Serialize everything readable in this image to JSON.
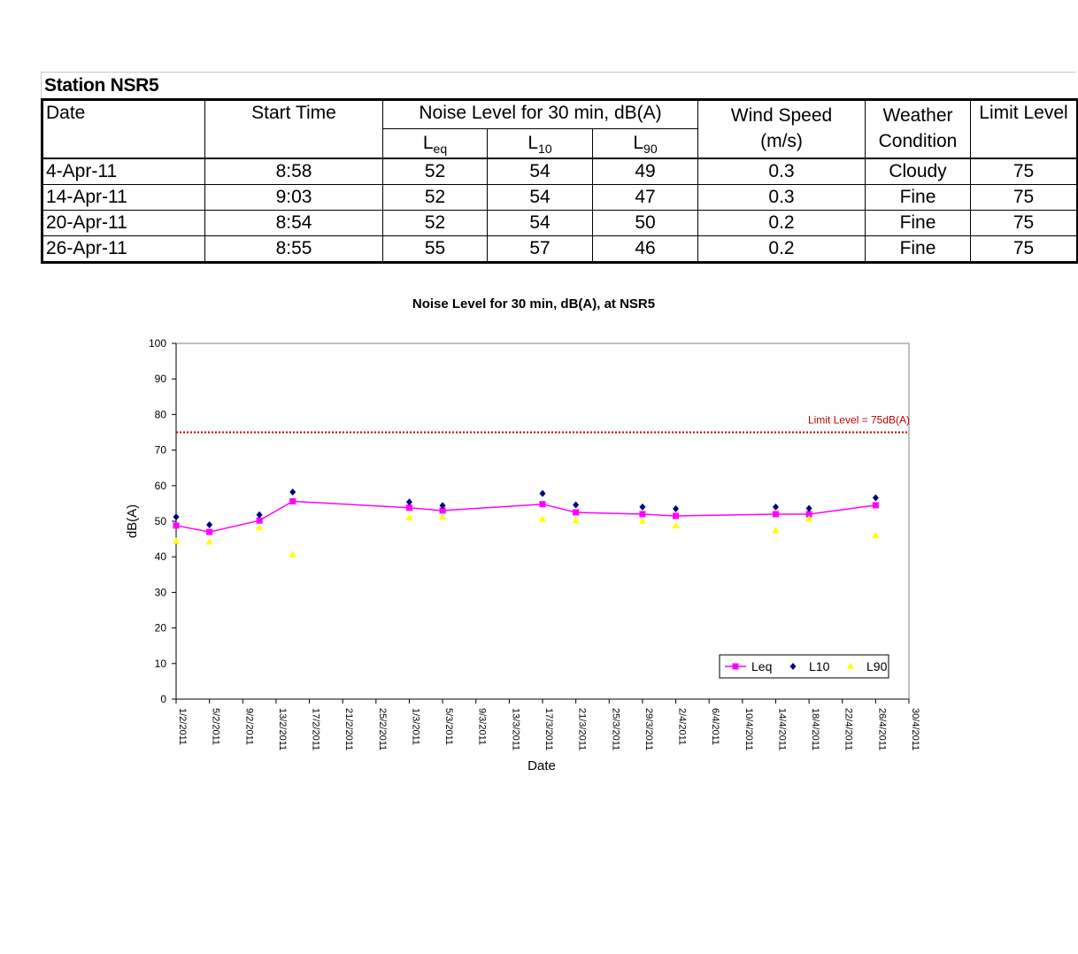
{
  "station_title": "Station NSR5",
  "table": {
    "headers": {
      "date": "Date",
      "start_time": "Start Time",
      "noise_group": "Noise Level for 30 min, dB(A)",
      "leq_main": "L",
      "leq_sub": "eq",
      "l10_main": "L",
      "l10_sub": "10",
      "l90_main": "L",
      "l90_sub": "90",
      "wind_line1": "Wind Speed",
      "wind_line2": "(m/s)",
      "weather_line1": "Weather",
      "weather_line2": "Condition",
      "limit": "Limit Level"
    },
    "rows": [
      {
        "date": "4-Apr-11",
        "start": "8:58",
        "leq": "52",
        "l10": "54",
        "l90": "49",
        "wind": "0.3",
        "weather": "Cloudy",
        "limit": "75"
      },
      {
        "date": "14-Apr-11",
        "start": "9:03",
        "leq": "52",
        "l10": "54",
        "l90": "47",
        "wind": "0.3",
        "weather": "Fine",
        "limit": "75"
      },
      {
        "date": "20-Apr-11",
        "start": "8:54",
        "leq": "52",
        "l10": "54",
        "l90": "50",
        "wind": "0.2",
        "weather": "Fine",
        "limit": "75"
      },
      {
        "date": "26-Apr-11",
        "start": "8:55",
        "leq": "55",
        "l10": "57",
        "l90": "46",
        "wind": "0.2",
        "weather": "Fine",
        "limit": "75"
      }
    ]
  },
  "chart_data": {
    "type": "line",
    "title": "Noise Level for 30 min, dB(A), at NSR5",
    "xlabel": "Date",
    "ylabel": "dB(A)",
    "ylim": [
      0,
      100
    ],
    "yticks": [
      0,
      10,
      20,
      30,
      40,
      50,
      60,
      70,
      80,
      90,
      100
    ],
    "xlim": [
      "1/2/2011",
      "30/4/2011"
    ],
    "xticks": [
      "1/2/2011",
      "5/2/2011",
      "9/2/2011",
      "13/2/2011",
      "17/2/2011",
      "21/2/2011",
      "25/2/2011",
      "1/3/2011",
      "5/3/2011",
      "9/3/2011",
      "13/3/2011",
      "17/3/2011",
      "21/3/2011",
      "25/3/2011",
      "29/3/2011",
      "2/4/2011",
      "6/4/2011",
      "10/4/2011",
      "14/4/2011",
      "18/4/2011",
      "22/4/2011",
      "26/4/2011",
      "30/4/2011"
    ],
    "limit_line": {
      "value": 75,
      "label": "Limit Level = 75dB(A)",
      "color": "#c00000"
    },
    "grid": false,
    "legend_position": "bottom-right",
    "series": [
      {
        "name": "Leq",
        "marker": "square",
        "color": "#ff00ff",
        "line": true,
        "points": [
          [
            "1/2/2011",
            48.8
          ],
          [
            "5/2/2011",
            47.0
          ],
          [
            "11/2/2011",
            50.2
          ],
          [
            "15/2/2011",
            55.6
          ],
          [
            "1/3/2011",
            53.8
          ],
          [
            "5/3/2011",
            53.0
          ],
          [
            "17/3/2011",
            54.8
          ],
          [
            "21/3/2011",
            52.5
          ],
          [
            "29/3/2011",
            52.0
          ],
          [
            "2/4/2011",
            51.5
          ],
          [
            "14/4/2011",
            52.0
          ],
          [
            "18/4/2011",
            52.0
          ],
          [
            "26/4/2011",
            54.5
          ]
        ]
      },
      {
        "name": "L10",
        "marker": "diamond",
        "color": "#000080",
        "line": false,
        "points": [
          [
            "1/2/2011",
            51.2
          ],
          [
            "5/2/2011",
            49.0
          ],
          [
            "11/2/2011",
            51.8
          ],
          [
            "15/2/2011",
            58.2
          ],
          [
            "1/3/2011",
            55.4
          ],
          [
            "5/3/2011",
            54.4
          ],
          [
            "17/3/2011",
            57.8
          ],
          [
            "21/3/2011",
            54.6
          ],
          [
            "29/3/2011",
            54.0
          ],
          [
            "2/4/2011",
            53.5
          ],
          [
            "14/4/2011",
            54.0
          ],
          [
            "18/4/2011",
            53.6
          ],
          [
            "26/4/2011",
            56.6
          ]
        ]
      },
      {
        "name": "L90",
        "marker": "triangle",
        "color": "#ffff00",
        "line": false,
        "points": [
          [
            "1/2/2011",
            44.4
          ],
          [
            "5/2/2011",
            44.2
          ],
          [
            "11/2/2011",
            48.2
          ],
          [
            "15/2/2011",
            40.6
          ],
          [
            "1/3/2011",
            51.0
          ],
          [
            "5/3/2011",
            51.2
          ],
          [
            "17/3/2011",
            50.6
          ],
          [
            "21/3/2011",
            50.2
          ],
          [
            "29/3/2011",
            50.0
          ],
          [
            "2/4/2011",
            48.8
          ],
          [
            "14/4/2011",
            47.4
          ],
          [
            "18/4/2011",
            50.6
          ],
          [
            "26/4/2011",
            46.0
          ]
        ]
      }
    ]
  }
}
